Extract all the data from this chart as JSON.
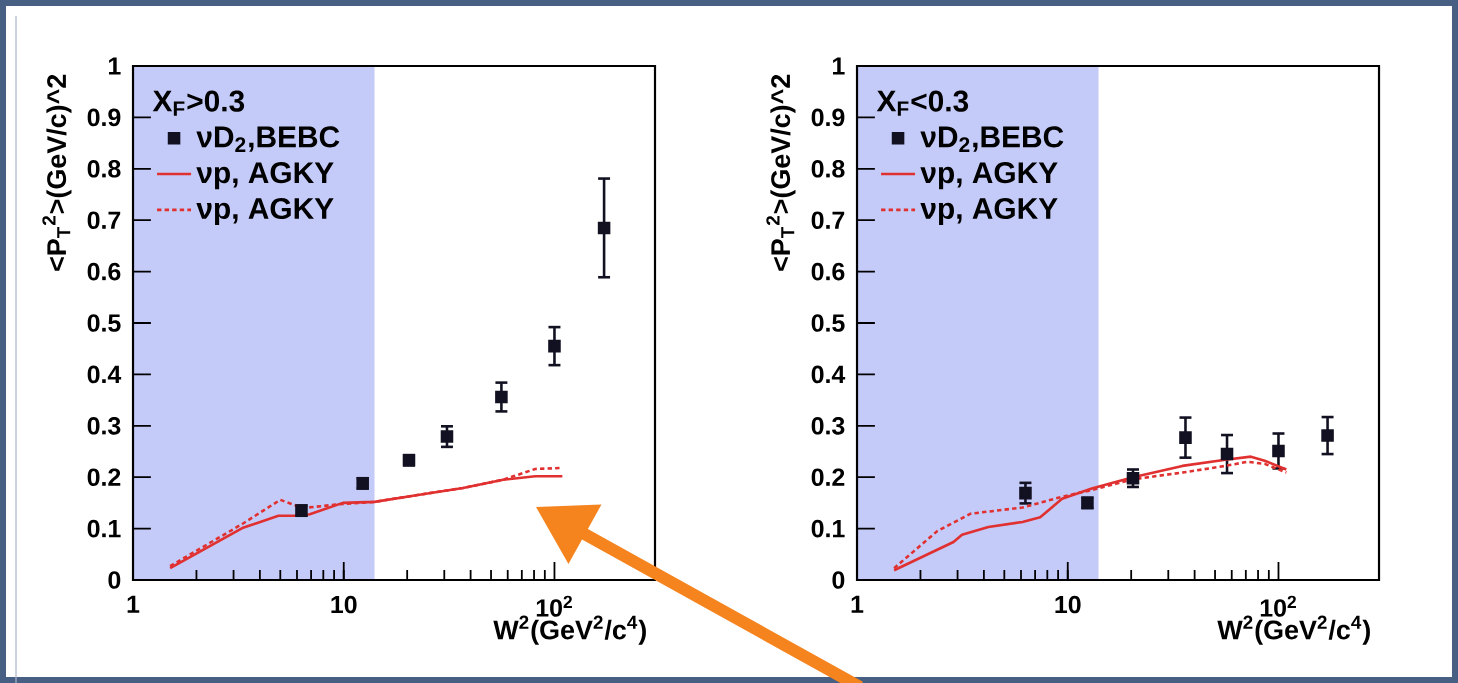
{
  "chart_data": [
    {
      "type": "line",
      "xlabel": "W$^{2}$(GeV$^{2}$/c$^{4}$)",
      "ylabel": "<P$_{T}$$^{2}$>(GeV/c)^2",
      "legend_title": "X$_{F}$>0.3",
      "legend": "top left",
      "log": "x",
      "grid": false,
      "xlim": [
        1,
        300
      ],
      "ylim": [
        0,
        1
      ],
      "xticks": [
        1,
        10,
        {
          "value": 100,
          "label": "10$^{2}$"
        }
      ],
      "yticks": [
        0,
        0.1,
        0.2,
        0.3,
        0.4,
        0.5,
        0.6,
        0.7,
        0.8,
        0.9,
        1
      ],
      "bands": [
        {
          "axis": "x",
          "from": 1,
          "to": 14,
          "color": "#c5cbf8"
        }
      ],
      "series": [
        {
          "name": "νD$_{2}$,BEBC",
          "type": "scatter",
          "marker": "square",
          "color": "#111122",
          "x": [
            6.3,
            12.3,
            20.4,
            30.9,
            56,
            100,
            172
          ],
          "values": [
            0.135,
            0.188,
            0.233,
            0.279,
            0.356,
            0.455,
            0.685
          ],
          "errors": [
            0.01,
            0.01,
            0.01,
            0.02,
            0.028,
            0.037,
            0.096
          ]
        },
        {
          "name": "νp, AGKY",
          "line_style": "solid",
          "color": "#e03030",
          "x": [
            1.5,
            3.3,
            4.9,
            6.1,
            6.9,
            9.9,
            14,
            23.7,
            36.8,
            57,
            81,
            109
          ],
          "values": [
            0.023,
            0.101,
            0.125,
            0.125,
            0.128,
            0.15,
            0.152,
            0.167,
            0.179,
            0.195,
            0.202,
            0.202
          ]
        },
        {
          "name": "νp, AGKY",
          "line_style": "dotted",
          "color": "#e03030",
          "x": [
            1.5,
            3.3,
            5.0,
            6.4,
            9.9,
            14,
            23.7,
            36.8,
            57,
            81,
            109
          ],
          "values": [
            0.027,
            0.109,
            0.156,
            0.14,
            0.148,
            0.152,
            0.167,
            0.179,
            0.195,
            0.216,
            0.218
          ]
        }
      ]
    },
    {
      "type": "line",
      "xlabel": "W$^{2}$(GeV$^{2}$/c$^{4}$)",
      "ylabel": "<P$_{T}$$^{2}$>(GeV/c)^2",
      "legend_title": "X$_{F}$<0.3",
      "legend": "top left",
      "log": "x",
      "grid": false,
      "xlim": [
        1,
        300
      ],
      "ylim": [
        0,
        1
      ],
      "xticks": [
        1,
        10,
        {
          "value": 100,
          "label": "10$^{2}$"
        }
      ],
      "yticks": [
        0,
        0.1,
        0.2,
        0.3,
        0.4,
        0.5,
        0.6,
        0.7,
        0.8,
        0.9,
        1
      ],
      "bands": [
        {
          "axis": "x",
          "from": 1,
          "to": 14,
          "color": "#c5cbf8"
        }
      ],
      "series": [
        {
          "name": "νD$_{2}$,BEBC",
          "type": "scatter",
          "marker": "square",
          "color": "#111122",
          "x": [
            6.3,
            12.4,
            20.4,
            36.2,
            57,
            100,
            171
          ],
          "values": [
            0.169,
            0.15,
            0.198,
            0.277,
            0.245,
            0.251,
            0.281
          ],
          "errors": [
            0.02,
            0.01,
            0.017,
            0.039,
            0.037,
            0.034,
            0.036
          ]
        },
        {
          "name": "νp, AGKY",
          "line_style": "solid",
          "color": "#e03030",
          "x": [
            1.5,
            2.87,
            3.15,
            4.2,
            6.1,
            7.4,
            9.4,
            13,
            20.4,
            35,
            56,
            74,
            86,
            109
          ],
          "values": [
            0.019,
            0.074,
            0.088,
            0.103,
            0.113,
            0.122,
            0.158,
            0.178,
            0.2,
            0.222,
            0.234,
            0.24,
            0.232,
            0.215
          ]
        },
        {
          "name": "νp, AGKY",
          "line_style": "dotted",
          "color": "#e03030",
          "x": [
            1.5,
            2.4,
            3.46,
            6.1,
            9.4,
            13,
            20.4,
            35,
            56,
            71,
            86,
            109
          ],
          "values": [
            0.023,
            0.095,
            0.129,
            0.141,
            0.162,
            0.175,
            0.196,
            0.209,
            0.222,
            0.23,
            0.226,
            0.209
          ]
        }
      ]
    }
  ]
}
